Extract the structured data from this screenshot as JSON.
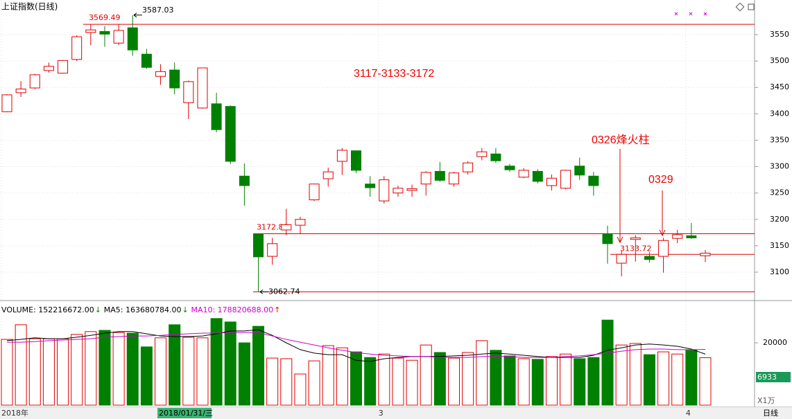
{
  "header": {
    "title": "上证指数(日线)",
    "period": "日线",
    "unit": "X1万",
    "cursor_date": "2018/01/31/三",
    "cursor_value": "6933"
  },
  "chart_data": [
    {
      "type": "candlestick",
      "categories": [
        "2018年",
        null,
        null,
        null,
        null,
        null,
        null,
        null,
        null,
        null,
        null,
        null,
        null,
        null,
        null,
        null,
        null,
        null,
        null,
        null,
        null,
        null,
        null,
        null,
        null,
        null,
        null,
        "3",
        null,
        null,
        null,
        null,
        null,
        null,
        null,
        null,
        null,
        null,
        null,
        null,
        null,
        null,
        null,
        null,
        null,
        null,
        null,
        null,
        null,
        "4",
        null
      ],
      "open": [
        3404,
        3440,
        3449,
        3482,
        3477,
        3503,
        3554,
        3556,
        3534,
        3563,
        3513,
        3471,
        3483,
        3421,
        3411,
        3419,
        3414,
        3282,
        3172,
        3130,
        3180,
        3189,
        3237,
        3277,
        3310,
        3330,
        3267,
        3235,
        3250,
        3255,
        3267,
        3291,
        3267,
        3290,
        3319,
        3324,
        3301,
        3280,
        3291,
        3264,
        3259,
        3301,
        3282,
        3173,
        3117,
        3162,
        3130,
        3130,
        3164,
        3169,
        3131
      ],
      "high": [
        3437,
        3462,
        3476,
        3497,
        3502,
        3549,
        3569.49,
        3566,
        3570,
        3587.03,
        3523,
        3494,
        3497,
        3463,
        3487,
        3440,
        3416,
        3306,
        3172.86,
        3165,
        3220,
        3205,
        3267,
        3298,
        3335,
        3330,
        3282,
        3282,
        3264,
        3266,
        3291,
        3309,
        3290,
        3310,
        3335,
        3335,
        3305,
        3297,
        3295,
        3285,
        3294,
        3317,
        3290,
        3188,
        3140,
        3170,
        3138,
        3165,
        3180,
        3193,
        3142
      ],
      "low": [
        3403,
        3432,
        3447,
        3478,
        3476,
        3500,
        3530,
        3527,
        3530,
        3510,
        3485,
        3455,
        3437,
        3390,
        3410,
        3365,
        3305,
        3226,
        3062.74,
        3114,
        3170,
        3173,
        3235,
        3262,
        3284,
        3288,
        3243,
        3230,
        3243,
        3243,
        3245,
        3271,
        3262,
        3285,
        3312,
        3307,
        3290,
        3278,
        3268,
        3255,
        3257,
        3275,
        3245,
        3116,
        3092,
        3120,
        3118,
        3099,
        3155,
        3163,
        3119
      ],
      "close": [
        3436,
        3447,
        3474,
        3490,
        3501,
        3546,
        3559,
        3551,
        3558,
        3521,
        3488,
        3480,
        3449,
        3461,
        3487,
        3370,
        3310,
        3264,
        3129,
        3154,
        3190,
        3200,
        3267,
        3290,
        3331,
        3293,
        3260,
        3275,
        3259,
        3258,
        3289,
        3274,
        3288,
        3307,
        3328,
        3311,
        3294,
        3293,
        3272,
        3278,
        3293,
        3284,
        3264,
        3154,
        3133.72,
        3165,
        3124,
        3160,
        3171,
        3165,
        3136
      ],
      "up_color": "#e00000",
      "down_color": "#008000",
      "ylim": [
        3048.8,
        3589.4
      ],
      "yticks": [
        3100,
        3150,
        3200,
        3250,
        3300,
        3350,
        3400,
        3450,
        3500,
        3550
      ],
      "grid": true,
      "annotations": [
        {
          "label": "3569.49",
          "value": 3569.49
        },
        {
          "label": "3587.03",
          "value": 3587.03
        },
        {
          "label": "3172.86",
          "value": 3172.86
        },
        {
          "label": "3062.74",
          "value": 3062.74
        },
        {
          "label": "3133.72",
          "value": 3133.72
        }
      ],
      "notes": [
        "3117-3133-3172",
        "0326烽火柱",
        "0329"
      ]
    },
    {
      "type": "bar",
      "series": [
        {
          "name": "VOLUME: 152216672.00",
          "trend": "↓",
          "color": "#000000",
          "values": [
            21100,
            25800,
            21300,
            21300,
            21300,
            22700,
            23600,
            24000,
            23300,
            23100,
            18700,
            21600,
            25800,
            21800,
            21600,
            27800,
            26700,
            20000,
            25300,
            15100,
            14900,
            10000,
            14200,
            19100,
            18400,
            17100,
            15300,
            16400,
            15100,
            14400,
            19300,
            16900,
            15100,
            16900,
            20700,
            17600,
            15800,
            14900,
            14700,
            15600,
            16400,
            14900,
            15300,
            27300,
            19300,
            19800,
            16200,
            17100,
            16400,
            17600,
            15221.67
          ]
        },
        {
          "name": "MA5: 163680784.00",
          "trend": "↓",
          "color": "#000000",
          "values": [
            20700,
            21100,
            21600,
            21300,
            21300,
            21800,
            22400,
            23100,
            23600,
            23600,
            22900,
            22200,
            22000,
            22000,
            22200,
            22900,
            23800,
            23800,
            24200,
            22400,
            20000,
            17800,
            16700,
            16200,
            16200,
            14400,
            14000,
            14900,
            15300,
            15600,
            15600,
            15600,
            15800,
            16000,
            16400,
            16700,
            16400,
            16000,
            15600,
            15300,
            15300,
            15300,
            16000,
            17600,
            18400,
            19300,
            19600,
            19300,
            18900,
            18000,
            16368.08
          ]
        },
        {
          "name": "MA10: 178820688.00",
          "trend": "↑",
          "color": "#cc00cc",
          "values": [
            20200,
            20200,
            20400,
            20700,
            20900,
            21100,
            21300,
            21800,
            22000,
            22200,
            22200,
            22400,
            22700,
            22900,
            23100,
            23100,
            23300,
            23300,
            23300,
            22200,
            21100,
            20200,
            19300,
            18400,
            17600,
            16900,
            16400,
            16000,
            15800,
            15600,
            15600,
            15300,
            15300,
            15300,
            15600,
            15600,
            15600,
            15300,
            15300,
            15300,
            15600,
            15800,
            16200,
            16700,
            17300,
            17800,
            18000,
            18000,
            17800,
            17800,
            17882.07
          ]
        }
      ],
      "ylim": [
        0,
        32222
      ],
      "yticks": [
        20000
      ]
    }
  ]
}
